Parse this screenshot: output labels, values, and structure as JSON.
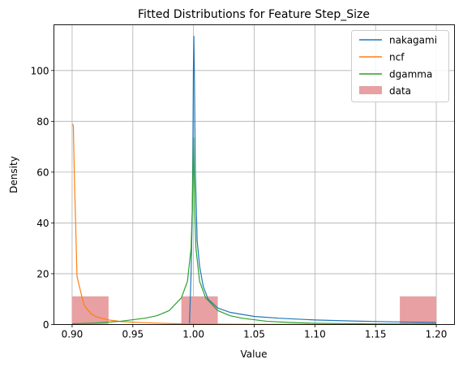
{
  "chart_data": {
    "type": "line",
    "title": "Fitted Distributions for Feature Step_Size",
    "xlabel": "Value",
    "ylabel": "Density",
    "xlim": [
      0.885,
      1.215
    ],
    "ylim": [
      0,
      118
    ],
    "xticks": [
      0.9,
      0.95,
      1.0,
      1.05,
      1.1,
      1.15,
      1.2
    ],
    "xtick_labels": [
      "0.90",
      "0.95",
      "1.00",
      "1.05",
      "1.10",
      "1.15",
      "1.20"
    ],
    "yticks": [
      0,
      20,
      40,
      60,
      80,
      100
    ],
    "ytick_labels": [
      "0",
      "20",
      "40",
      "60",
      "80",
      "100"
    ],
    "grid": true,
    "legend_position": "top-right",
    "series": [
      {
        "name": "nakagami",
        "color": "#1f77b4",
        "x": [
          0.9967,
          0.997,
          0.998,
          0.999,
          0.9995,
          0.9999,
          1.0003,
          1.0008,
          1.0015,
          1.003,
          1.005,
          1.008,
          1.012,
          1.02,
          1.03,
          1.05,
          1.07,
          1.1,
          1.13,
          1.16,
          1.2
        ],
        "y": [
          0.5,
          5,
          20,
          45,
          70,
          100,
          113.5,
          95,
          60,
          33,
          23,
          15,
          10,
          6.5,
          4.8,
          3.2,
          2.5,
          1.8,
          1.4,
          1.1,
          0.8
        ]
      },
      {
        "name": "ncf",
        "color": "#ff7f0e",
        "x": [
          0.9005,
          0.901,
          0.902,
          0.903,
          0.904,
          0.906,
          0.908,
          0.91,
          0.915,
          0.92,
          0.93,
          0.94,
          0.96,
          0.98,
          1.0,
          1.05,
          1.1,
          1.15,
          1.2
        ],
        "y": [
          79,
          78,
          55,
          38,
          19,
          15,
          11,
          7.5,
          4.5,
          3,
          1.8,
          1.2,
          0.7,
          0.4,
          0.25,
          0.1,
          0.05,
          0.02,
          0.01
        ]
      },
      {
        "name": "dgamma",
        "color": "#2ca02c",
        "x": [
          0.9,
          0.92,
          0.94,
          0.96,
          0.97,
          0.98,
          0.99,
          0.995,
          0.998,
          0.999,
          1.0,
          1.001,
          1.002,
          1.005,
          1.01,
          1.02,
          1.03,
          1.04,
          1.06,
          1.08,
          1.1,
          1.15,
          1.2
        ],
        "y": [
          0.3,
          0.6,
          1.3,
          2.5,
          3.5,
          5.5,
          10.5,
          17,
          30,
          45,
          73.5,
          45,
          30,
          17,
          10.5,
          5.5,
          3.5,
          2.5,
          1.3,
          0.8,
          0.5,
          0.25,
          0.2
        ]
      }
    ],
    "histogram": {
      "name": "data",
      "color": "#e8a0a2",
      "bin_width": 0.03,
      "bins": [
        {
          "start": 0.9,
          "value": 11.1
        },
        {
          "start": 0.93,
          "value": 0
        },
        {
          "start": 0.96,
          "value": 0
        },
        {
          "start": 0.99,
          "value": 11.1
        },
        {
          "start": 1.02,
          "value": 0
        },
        {
          "start": 1.05,
          "value": 0
        },
        {
          "start": 1.08,
          "value": 0
        },
        {
          "start": 1.11,
          "value": 0
        },
        {
          "start": 1.14,
          "value": 0
        },
        {
          "start": 1.17,
          "value": 11.1
        }
      ]
    }
  }
}
